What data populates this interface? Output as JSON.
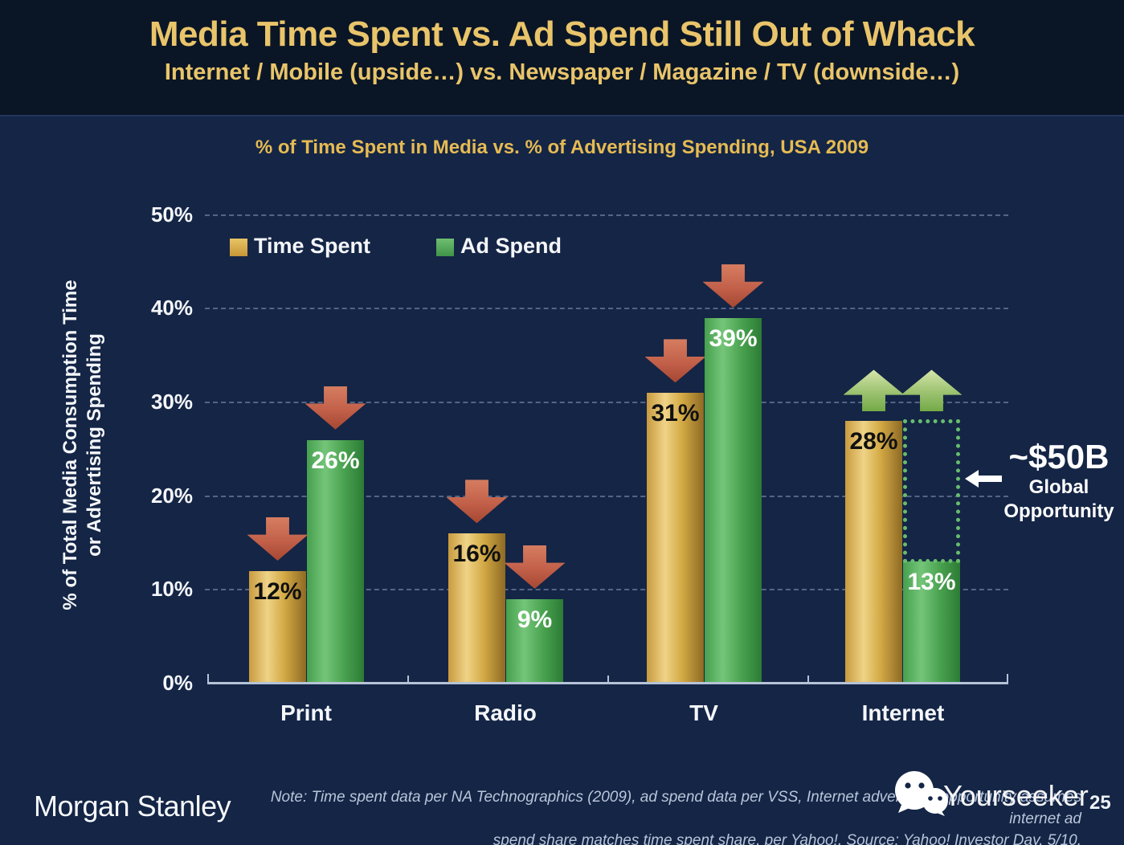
{
  "header": {
    "title": "Media Time Spent vs. Ad Spend Still Out of Whack",
    "subtitle": "Internet / Mobile (upside…) vs. Newspaper / Magazine / TV (downside…)"
  },
  "chart_data": {
    "type": "bar",
    "title": "% of Time Spent in Media vs. % of Advertising Spending, USA 2009",
    "ylabel_line1": "% of Total Media Consumption Time",
    "ylabel_line2": "or Advertising Spending",
    "categories": [
      "Print",
      "Radio",
      "TV",
      "Internet"
    ],
    "series": [
      {
        "name": "Time Spent",
        "color": "#d9ac4e",
        "values": [
          12,
          16,
          31,
          28
        ],
        "unit": "%"
      },
      {
        "name": "Ad Spend",
        "color": "#55a85a",
        "values": [
          26,
          9,
          39,
          13
        ],
        "unit": "%"
      }
    ],
    "ylim": [
      0,
      50
    ],
    "y_ticks": [
      0,
      10,
      20,
      30,
      40,
      50
    ],
    "grid": "dashed-horizontal",
    "legend_position": "top-left-inside",
    "trend_arrows": [
      [
        "down",
        "down"
      ],
      [
        "down",
        "down"
      ],
      [
        "down",
        "down"
      ],
      [
        "up",
        "up"
      ]
    ],
    "annotation": {
      "category": "Internet",
      "from_value": 13,
      "to_value": 28,
      "label": "~$50B",
      "sublabel_line1": "Global",
      "sublabel_line2": "Opportunity"
    }
  },
  "colors": {
    "background": "#142546",
    "header_background": "#0a1626",
    "title_gold": "#e9c46a",
    "bar_gold": "#d9ac4e",
    "bar_green": "#55a85a",
    "arrow_red": "#c2604a",
    "arrow_green": "#a5c87a",
    "opportunity_dotted": "#68bd6c"
  },
  "footer": {
    "brand": "Morgan Stanley",
    "note_line1": "Note: Time spent data per NA Technographics (2009), ad spend data per VSS, Internet advertising opportunity assumes internet ad",
    "note_line2": "spend share matches time spent share, per Yahoo!. Source: Yahoo! Investor Day, 5/10.",
    "watermark": "Yourseeker",
    "page_number": "25"
  }
}
